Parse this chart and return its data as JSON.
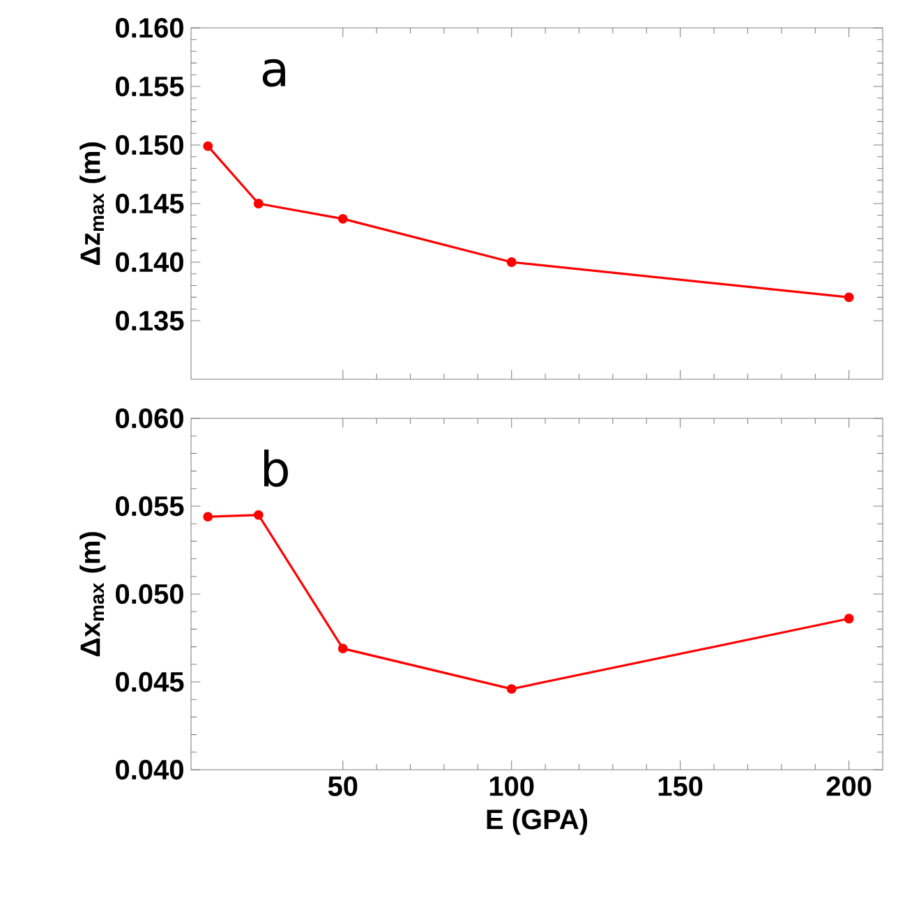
{
  "chart_data": [
    {
      "type": "line",
      "x": [
        10,
        25,
        50,
        100,
        200
      ],
      "ylabel": "Δz$_{max}$ (m)",
      "annotations": [
        "a"
      ],
      "series": [
        {
          "color": "#ff0000",
          "values": [
            0.1499,
            0.145,
            0.1437,
            0.14,
            0.137
          ]
        }
      ],
      "xlim": [
        5,
        210
      ],
      "xticks": [
        50,
        100,
        150,
        200
      ],
      "ylim": [
        0.13,
        0.16
      ],
      "yticks": [
        {
          "value": 0.135,
          "label": "0.135"
        },
        {
          "value": 0.14,
          "label": "0.140"
        },
        {
          "value": 0.145,
          "label": "0.145"
        },
        {
          "value": 0.15,
          "label": "0.150"
        },
        {
          "value": 0.155,
          "label": "0.155"
        },
        {
          "value": 0.16,
          "label": "0.160"
        }
      ],
      "tick_labels": "y",
      "marker": "circle",
      "line_style": "solid"
    },
    {
      "type": "line",
      "x": [
        10,
        25,
        50,
        100,
        200
      ],
      "xlabel": "E (GPA)",
      "ylabel": "Δx$_{max}$ (m)",
      "annotations": [
        "b"
      ],
      "series": [
        {
          "color": "#ff0000",
          "values": [
            0.0544,
            0.0545,
            0.0469,
            0.0446,
            0.0486
          ]
        }
      ],
      "xlim": [
        5,
        210
      ],
      "xticks": [
        50,
        100,
        150,
        200
      ],
      "ylim": [
        0.04,
        0.06
      ],
      "yticks": [
        {
          "value": 0.04,
          "label": "0.040"
        },
        {
          "value": 0.045,
          "label": "0.045"
        },
        {
          "value": 0.05,
          "label": "0.050"
        },
        {
          "value": 0.055,
          "label": "0.055"
        },
        {
          "value": 0.06,
          "label": "0.060"
        }
      ],
      "marker": "circle",
      "line_style": "solid"
    }
  ]
}
